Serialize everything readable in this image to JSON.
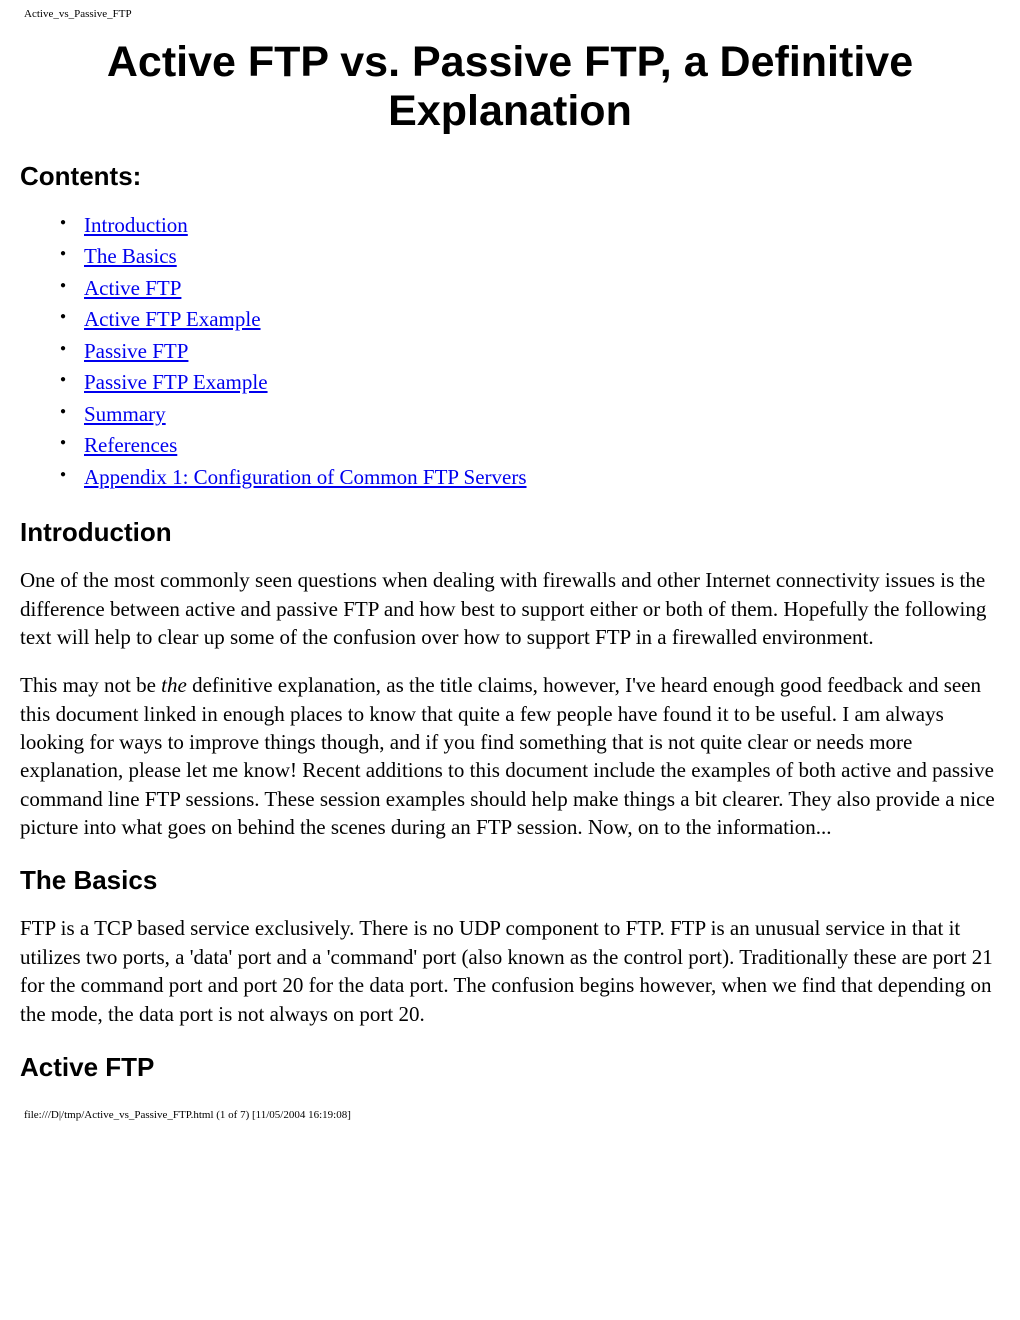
{
  "header_label": "Active_vs_Passive_FTP",
  "title": "Active FTP vs. Passive FTP, a Definitive Explanation",
  "contents_heading": "Contents:",
  "toc": [
    "Introduction",
    "The Basics",
    "Active FTP",
    "Active FTP Example",
    "Passive FTP",
    "Passive FTP Example",
    "Summary",
    "References",
    "Appendix 1: Configuration of Common FTP Servers"
  ],
  "section_intro_heading": "Introduction",
  "intro_p1": "One of the most commonly seen questions when dealing with firewalls and other Internet connectivity issues is the difference between active and passive FTP and how best to support either or both of them. Hopefully the following text will help to clear up some of the confusion over how to support FTP in a firewalled environment.",
  "intro_p2_part1": "This may not be ",
  "intro_p2_italic": "the",
  "intro_p2_part2": " definitive explanation, as the title claims, however, I've heard enough good feedback and seen this document linked in enough places to know that quite a few people have found it to be useful. I am always looking for ways to improve things though, and if you find something that is not quite clear or needs more explanation, please let me know! Recent additions to this document include the examples of both active and passive command line FTP sessions. These session examples should help make things a bit clearer. They also provide a nice picture into what goes on behind the scenes during an FTP session. Now, on to the information...",
  "section_basics_heading": "The Basics",
  "basics_p1": "FTP is a TCP based service exclusively. There is no UDP component to FTP. FTP is an unusual service in that it utilizes two ports, a 'data' port and a 'command' port (also known as the control port). Traditionally these are port 21 for the command port and port 20 for the data port. The confusion begins however, when we find that depending on the mode, the data port is not always on port 20.",
  "section_active_heading": "Active FTP",
  "footer_label": "file:///D|/tmp/Active_vs_Passive_FTP.html (1 of 7) [11/05/2004 16:19:08]",
  "link_color": "#0000ee",
  "text_color": "#000000",
  "background_color": "#ffffff"
}
